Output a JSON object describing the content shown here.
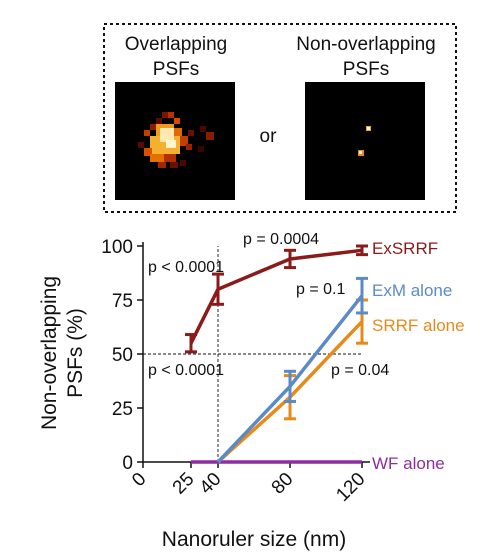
{
  "inset": {
    "left_label_line1": "Overlapping",
    "left_label_line2": "PSFs",
    "or_label": "or",
    "right_label_line1": "Non-overlapping",
    "right_label_line2": "PSFs"
  },
  "chart_data": {
    "type": "line",
    "xlabel": "Nanoruler size (nm)",
    "ylabel_line1": "Non-overlapping",
    "ylabel_line2": "PSFs (%)",
    "x_ticks": [
      "0",
      "25",
      "40",
      "80",
      "120"
    ],
    "y_ticks": [
      "0",
      "25",
      "50",
      "75",
      "100"
    ],
    "ylim": [
      0,
      100
    ],
    "grid": false,
    "reference_lines": {
      "y": 50,
      "x": "40"
    },
    "series": [
      {
        "name": "ExSRRF",
        "color": "#8b1a1a",
        "points": [
          {
            "x": "25",
            "y": 55,
            "err": 4
          },
          {
            "x": "40",
            "y": 80,
            "err": 7
          },
          {
            "x": "80",
            "y": 94,
            "err": 4
          },
          {
            "x": "120",
            "y": 98,
            "err": 2
          }
        ]
      },
      {
        "name": "ExM alone",
        "color": "#5b8ac6",
        "points": [
          {
            "x": "40",
            "y": 0,
            "err": 0
          },
          {
            "x": "80",
            "y": 35,
            "err": 7
          },
          {
            "x": "120",
            "y": 77,
            "err": 8
          }
        ]
      },
      {
        "name": "SRRF alone",
        "color": "#e88a1a",
        "points": [
          {
            "x": "40",
            "y": 0,
            "err": 0
          },
          {
            "x": "80",
            "y": 30,
            "err": 10
          },
          {
            "x": "120",
            "y": 65,
            "err": 10
          }
        ]
      },
      {
        "name": "WF alone",
        "color": "#8e2da0",
        "points": [
          {
            "x": "25",
            "y": 0,
            "err": 0
          },
          {
            "x": "40",
            "y": 0,
            "err": 0
          },
          {
            "x": "80",
            "y": 0,
            "err": 0
          },
          {
            "x": "120",
            "y": 0,
            "err": 0
          }
        ]
      }
    ],
    "annotations": {
      "p_top_left": "p < 0.0001",
      "p_top_right": "p = 0.0004",
      "p_mid_right": "p = 0.1",
      "p_bottom_left": "p < 0.0001",
      "p_bottom_right": "p = 0.04"
    }
  }
}
